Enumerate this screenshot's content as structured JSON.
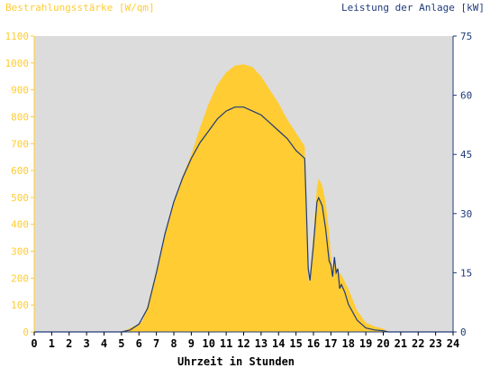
{
  "chart_data": {
    "type": "area",
    "left_axis_title": "Bestrahlungsstärke [W/qm]",
    "right_axis_title": "Leistung der Anlage [kW]",
    "xlabel": "Uhrzeit in Stunden",
    "x_ticks": [
      "0",
      "1",
      "2",
      "3",
      "4",
      "5",
      "6",
      "7",
      "8",
      "9",
      "10",
      "11",
      "12",
      "13",
      "14",
      "15",
      "16",
      "17",
      "18",
      "19",
      "20",
      "21",
      "22",
      "23",
      "24"
    ],
    "y_left_ticks": [
      "0",
      "100",
      "200",
      "300",
      "400",
      "500",
      "600",
      "700",
      "800",
      "900",
      "1000",
      "1100"
    ],
    "y_right_ticks": [
      "0",
      "15",
      "30",
      "45",
      "60",
      "75"
    ],
    "xlim": [
      0,
      24
    ],
    "ylim_left": [
      0,
      1100
    ],
    "ylim_right": [
      0,
      75
    ],
    "grid": false,
    "colors": {
      "irradiance": "#ffcc33",
      "power": "#1f3a7a",
      "left_axis": "#ffcc33",
      "right_axis": "#1f3a7a",
      "plot_background": "#dcdcdc"
    },
    "series": [
      {
        "axis": "left",
        "x": [
          0,
          5,
          5.5,
          6,
          6.2,
          6.5,
          7,
          7.5,
          8,
          8.5,
          9,
          9.5,
          10,
          10.5,
          11,
          11.5,
          12,
          12.5,
          13,
          13.5,
          14,
          14.5,
          15,
          15.5,
          15.7,
          15.75,
          16,
          16.2,
          16.3,
          16.5,
          16.7,
          16.9,
          17,
          17.1,
          17.2,
          17.3,
          17.5,
          17.7,
          18,
          18.5,
          19,
          19.5,
          20,
          20.3,
          24
        ],
        "y": [
          0,
          0,
          15,
          30,
          40,
          100,
          230,
          370,
          480,
          580,
          660,
          760,
          850,
          920,
          965,
          990,
          995,
          985,
          950,
          900,
          850,
          790,
          740,
          690,
          200,
          180,
          360,
          540,
          570,
          545,
          480,
          370,
          280,
          230,
          270,
          240,
          220,
          200,
          160,
          80,
          35,
          20,
          12,
          0,
          0
        ]
      },
      {
        "axis": "right",
        "x": [
          0,
          5,
          5.5,
          6,
          6.5,
          7,
          7.5,
          8,
          8.5,
          9,
          9.5,
          10,
          10.5,
          11,
          11.5,
          12,
          12.5,
          13,
          13.5,
          14,
          14.5,
          15,
          15.5,
          15.6,
          15.7,
          15.8,
          16,
          16.2,
          16.3,
          16.5,
          16.7,
          16.9,
          17,
          17.1,
          17.2,
          17.3,
          17.4,
          17.5,
          17.6,
          17.8,
          18,
          18.5,
          19,
          19.5,
          20,
          20.3,
          24
        ],
        "y": [
          0,
          0,
          0.5,
          2,
          6,
          15,
          25,
          33,
          39,
          44,
          48,
          51,
          54,
          56,
          57,
          57,
          56,
          55,
          53,
          51,
          49,
          46,
          44,
          30,
          16,
          13,
          22,
          33,
          34,
          32,
          26,
          18,
          17,
          14,
          19,
          15,
          16,
          11,
          12,
          10,
          7,
          3,
          1,
          0.5,
          0.3,
          0,
          0
        ]
      }
    ]
  }
}
